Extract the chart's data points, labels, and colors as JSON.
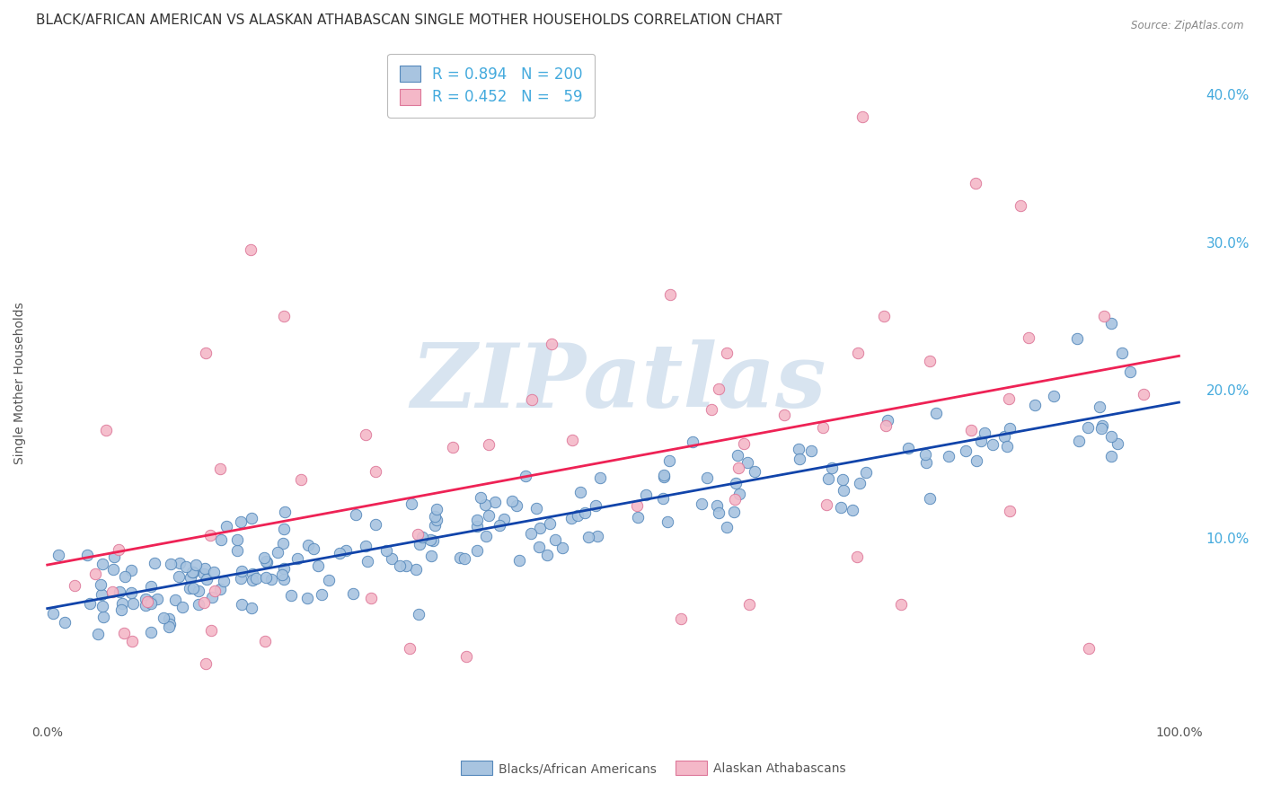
{
  "title": "BLACK/AFRICAN AMERICAN VS ALASKAN ATHABASCAN SINGLE MOTHER HOUSEHOLDS CORRELATION CHART",
  "source": "Source: ZipAtlas.com",
  "ylabel": "Single Mother Households",
  "blue_R": 0.894,
  "blue_N": 200,
  "pink_R": 0.452,
  "pink_N": 59,
  "blue_color": "#a8c4e0",
  "pink_color": "#f4b8c8",
  "blue_edge_color": "#5588bb",
  "pink_edge_color": "#dd7799",
  "blue_line_color": "#1144aa",
  "pink_line_color": "#ee2255",
  "blue_label": "Blacks/African Americans",
  "pink_label": "Alaskan Athabascans",
  "ytick_values": [
    0.0,
    0.1,
    0.2,
    0.3,
    0.4
  ],
  "ytick_labels": [
    "",
    "10.0%",
    "20.0%",
    "30.0%",
    "40.0%"
  ],
  "xtick_values": [
    0.0,
    0.1,
    0.2,
    0.3,
    0.4,
    0.5,
    0.6,
    0.7,
    0.8,
    0.9,
    1.0
  ],
  "xtick_labels": [
    "0.0%",
    "",
    "",
    "",
    "",
    "",
    "",
    "",
    "",
    "",
    "100.0%"
  ],
  "xlim": [
    -0.01,
    1.02
  ],
  "ylim": [
    -0.025,
    0.435
  ],
  "right_tick_color": "#44aadd",
  "watermark_color": "#d8e4f0",
  "grid_color": "#cccccc",
  "background_color": "#ffffff",
  "title_fontsize": 11,
  "axis_label_fontsize": 10,
  "tick_fontsize": 10,
  "legend_fontsize": 12
}
